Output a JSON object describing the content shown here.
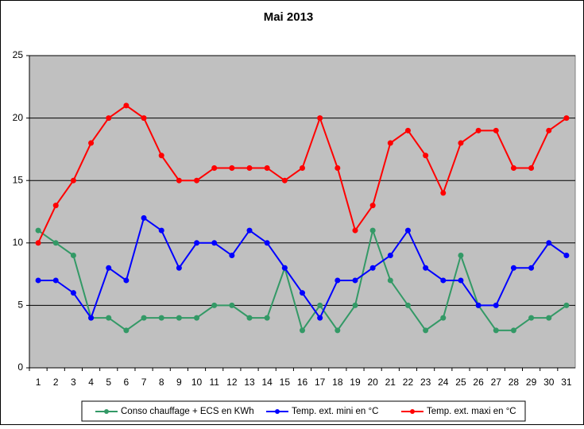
{
  "chart_data": {
    "type": "line",
    "title": "Mai 2013",
    "categories": [
      1,
      2,
      3,
      4,
      5,
      6,
      7,
      8,
      9,
      10,
      11,
      12,
      13,
      14,
      15,
      16,
      17,
      18,
      19,
      20,
      21,
      22,
      23,
      24,
      25,
      26,
      27,
      28,
      29,
      30,
      31
    ],
    "series": [
      {
        "name": "Conso chauffage + ECS en KWh",
        "color": "#339966",
        "values": [
          11,
          10,
          9,
          4,
          4,
          3,
          4,
          4,
          4,
          4,
          5,
          5,
          4,
          4,
          8,
          3,
          5,
          3,
          5,
          11,
          7,
          5,
          3,
          4,
          9,
          5,
          3,
          3,
          4,
          4,
          5
        ]
      },
      {
        "name": "Temp. ext. mini en °C",
        "color": "#0000ff",
        "values": [
          7,
          7,
          6,
          4,
          8,
          7,
          12,
          11,
          8,
          10,
          10,
          9,
          11,
          10,
          8,
          6,
          4,
          7,
          7,
          8,
          9,
          11,
          8,
          7,
          7,
          5,
          5,
          8,
          8,
          10,
          9
        ]
      },
      {
        "name": "Temp. ext. maxi en °C",
        "color": "#ff0000",
        "values": [
          10,
          13,
          15,
          18,
          20,
          21,
          20,
          17,
          15,
          15,
          16,
          16,
          16,
          16,
          15,
          16,
          20,
          16,
          11,
          13,
          18,
          19,
          17,
          14,
          18,
          19,
          19,
          16,
          16,
          19,
          20
        ]
      }
    ],
    "ylim": [
      0,
      25
    ],
    "yticks": [
      0,
      5,
      10,
      15,
      20,
      25
    ],
    "grid": true,
    "legend": "bottom"
  }
}
